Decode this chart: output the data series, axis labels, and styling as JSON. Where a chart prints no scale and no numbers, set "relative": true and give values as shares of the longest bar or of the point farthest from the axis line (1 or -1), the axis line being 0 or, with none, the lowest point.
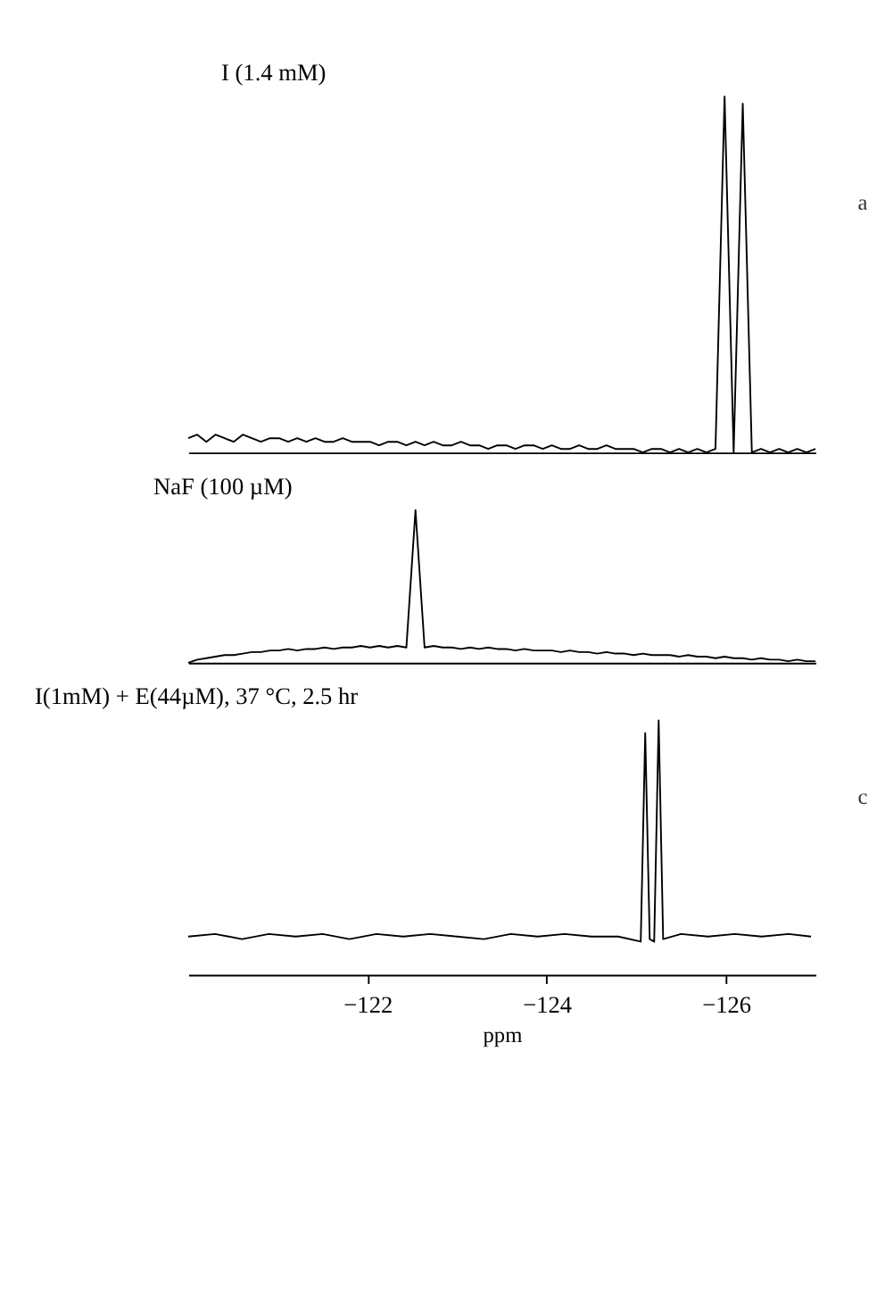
{
  "chart_data": [
    {
      "type": "line",
      "title": "I (1.4 mM)",
      "relative": true,
      "tick_labels": false,
      "annotations": [
        "a"
      ],
      "categories": [
        null,
        null,
        null,
        null,
        null,
        null,
        null,
        null,
        null,
        null,
        null,
        null,
        null,
        null,
        null,
        null,
        null,
        null,
        null,
        null,
        null,
        null,
        null,
        null,
        null,
        null,
        null,
        null,
        null,
        null,
        null,
        null,
        null,
        null,
        null,
        null,
        null,
        null,
        null,
        null,
        null,
        null,
        null,
        null,
        null,
        null,
        null,
        null,
        null,
        null,
        null,
        null,
        null,
        null,
        null,
        null,
        null,
        null,
        null,
        null,
        null,
        null,
        null,
        null,
        null,
        null,
        null,
        null,
        null,
        null
      ],
      "series": [
        {
          "color": "#000000",
          "values": [
            0.04,
            0.05,
            0.03,
            0.05,
            0.04,
            0.03,
            0.05,
            0.04,
            0.03,
            0.04,
            0.04,
            0.03,
            0.04,
            0.03,
            0.04,
            0.03,
            0.03,
            0.04,
            0.03,
            0.03,
            0.03,
            0.02,
            0.03,
            0.03,
            0.02,
            0.03,
            0.02,
            0.03,
            0.02,
            0.02,
            0.03,
            0.02,
            0.02,
            0.01,
            0.02,
            0.02,
            0.01,
            0.02,
            0.02,
            0.01,
            0.02,
            0.01,
            0.01,
            0.02,
            0.01,
            0.01,
            0.02,
            0.01,
            0.01,
            0.01,
            0.0,
            0.01,
            0.01,
            0.0,
            0.01,
            0.0,
            0.01,
            0.0,
            0.01,
            1.0,
            0.0,
            0.98,
            0.0,
            0.01,
            0.0,
            0.01,
            0.0,
            0.01,
            0.0,
            0.01
          ]
        }
      ]
    },
    {
      "type": "line",
      "title": "NaF (100 µM)",
      "relative": true,
      "tick_labels": false,
      "categories": [
        null,
        null,
        null,
        null,
        null,
        null,
        null,
        null,
        null,
        null,
        null,
        null,
        null,
        null,
        null,
        null,
        null,
        null,
        null,
        null,
        null,
        null,
        null,
        null,
        null,
        null,
        null,
        null,
        null,
        null,
        null,
        null,
        null,
        null,
        null,
        null,
        null,
        null,
        null,
        null,
        null,
        null,
        null,
        null,
        null,
        null,
        null,
        null,
        null,
        null,
        null,
        null,
        null,
        null,
        null,
        null,
        null,
        null,
        null,
        null,
        null,
        null,
        null,
        null,
        null,
        null,
        null,
        null,
        null,
        null
      ],
      "series": [
        {
          "color": "#000000",
          "values": [
            0.0,
            0.02,
            0.03,
            0.04,
            0.05,
            0.05,
            0.06,
            0.07,
            0.07,
            0.08,
            0.08,
            0.09,
            0.08,
            0.09,
            0.09,
            0.1,
            0.09,
            0.1,
            0.1,
            0.11,
            0.1,
            0.11,
            0.1,
            0.11,
            0.1,
            1.0,
            0.1,
            0.11,
            0.1,
            0.1,
            0.09,
            0.1,
            0.09,
            0.1,
            0.09,
            0.09,
            0.08,
            0.09,
            0.08,
            0.08,
            0.08,
            0.07,
            0.08,
            0.07,
            0.07,
            0.06,
            0.07,
            0.06,
            0.06,
            0.05,
            0.06,
            0.05,
            0.05,
            0.05,
            0.04,
            0.05,
            0.04,
            0.04,
            0.03,
            0.04,
            0.03,
            0.03,
            0.02,
            0.03,
            0.02,
            0.02,
            0.01,
            0.02,
            0.01,
            0.01
          ]
        }
      ]
    },
    {
      "type": "line",
      "title": "I(1mM) + E(44µM), 37 °C, 2.5 hr",
      "relative": true,
      "xlim": [
        -120,
        -127
      ],
      "xticks": [
        -122,
        -124,
        -126
      ],
      "xlabel": "ppm",
      "tick_labels": "x",
      "annotations": [
        "c"
      ],
      "series": [
        {
          "color": "#000000",
          "x": [
            -120.0,
            -120.3,
            -120.6,
            -120.9,
            -121.2,
            -121.5,
            -121.8,
            -122.1,
            -122.4,
            -122.7,
            -123.0,
            -123.3,
            -123.6,
            -123.9,
            -124.2,
            -124.5,
            -124.8,
            -125.05,
            -125.1,
            -125.15,
            -125.2,
            -125.25,
            -125.3,
            -125.5,
            -125.8,
            -126.1,
            -126.4,
            -126.7,
            -126.95
          ],
          "values": [
            0.15,
            0.16,
            0.14,
            0.16,
            0.15,
            0.16,
            0.14,
            0.16,
            0.15,
            0.16,
            0.15,
            0.14,
            0.16,
            0.15,
            0.16,
            0.15,
            0.15,
            0.13,
            0.95,
            0.14,
            0.13,
            1.0,
            0.14,
            0.16,
            0.15,
            0.16,
            0.15,
            0.16,
            0.15
          ]
        }
      ]
    }
  ]
}
